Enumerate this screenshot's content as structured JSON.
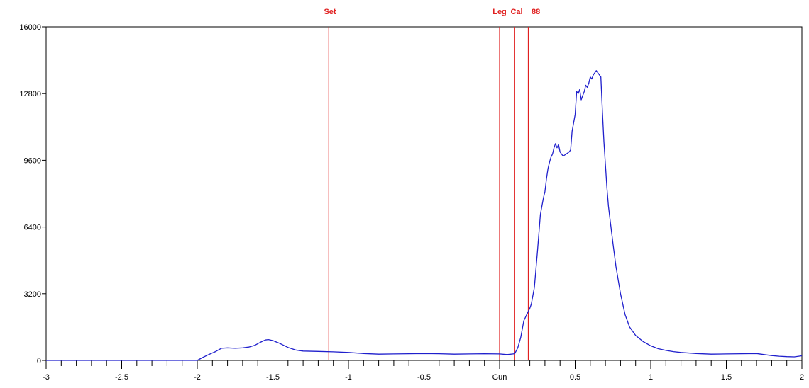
{
  "chart_data": {
    "type": "line",
    "title": "",
    "xlabel": "",
    "ylabel": "",
    "xlim": [
      -3,
      2
    ],
    "ylim": [
      0,
      16000
    ],
    "grid": false,
    "x_ticks": [
      {
        "value": -3,
        "label": "-3"
      },
      {
        "value": -2.5,
        "label": "-2.5"
      },
      {
        "value": -2,
        "label": "-2"
      },
      {
        "value": -1.5,
        "label": "-1.5"
      },
      {
        "value": -1,
        "label": "-1"
      },
      {
        "value": -0.5,
        "label": "-0.5"
      },
      {
        "value": 0,
        "label": "Gun"
      },
      {
        "value": 0.5,
        "label": "0.5"
      },
      {
        "value": 1,
        "label": "1"
      },
      {
        "value": 1.5,
        "label": "1.5"
      },
      {
        "value": 2,
        "label": "2"
      }
    ],
    "x_minor_step": 0.1,
    "y_ticks": [
      {
        "value": 0,
        "label": "0"
      },
      {
        "value": 3200,
        "label": "3200"
      },
      {
        "value": 6400,
        "label": "6400"
      },
      {
        "value": 9600,
        "label": "9600"
      },
      {
        "value": 12800,
        "label": "12800"
      },
      {
        "value": 16000,
        "label": "16000"
      }
    ],
    "markers": [
      {
        "x": -1.13,
        "label": "Set"
      },
      {
        "x": 0.0,
        "label": "Leg"
      },
      {
        "x": 0.1,
        "label": "Cal"
      },
      {
        "x": 0.19,
        "label": "88"
      }
    ],
    "series": [
      {
        "color": "#1f1fcc",
        "x": [
          -3.0,
          -2.0,
          -1.97,
          -1.93,
          -1.88,
          -1.84,
          -1.8,
          -1.75,
          -1.7,
          -1.66,
          -1.62,
          -1.58,
          -1.55,
          -1.53,
          -1.5,
          -1.45,
          -1.4,
          -1.35,
          -1.3,
          -1.2,
          -1.1,
          -1.0,
          -0.9,
          -0.8,
          -0.7,
          -0.6,
          -0.5,
          -0.4,
          -0.3,
          -0.2,
          -0.1,
          0.0,
          0.05,
          0.1,
          0.12,
          0.14,
          0.16,
          0.18,
          0.2,
          0.21,
          0.23,
          0.25,
          0.27,
          0.29,
          0.3,
          0.31,
          0.32,
          0.33,
          0.34,
          0.35,
          0.36,
          0.37,
          0.38,
          0.39,
          0.4,
          0.42,
          0.44,
          0.46,
          0.47,
          0.48,
          0.5,
          0.51,
          0.52,
          0.53,
          0.54,
          0.55,
          0.56,
          0.57,
          0.58,
          0.59,
          0.6,
          0.61,
          0.62,
          0.63,
          0.64,
          0.65,
          0.66,
          0.67,
          0.68,
          0.69,
          0.7,
          0.71,
          0.72,
          0.73,
          0.75,
          0.77,
          0.8,
          0.83,
          0.86,
          0.9,
          0.95,
          1.0,
          1.05,
          1.1,
          1.15,
          1.2,
          1.3,
          1.4,
          1.5,
          1.6,
          1.7,
          1.75,
          1.8,
          1.85,
          1.9,
          1.95,
          2.0
        ],
        "y": [
          0,
          0,
          120,
          260,
          420,
          580,
          600,
          580,
          600,
          640,
          720,
          880,
          980,
          1000,
          950,
          800,
          620,
          500,
          450,
          430,
          410,
          380,
          330,
          300,
          310,
          320,
          330,
          320,
          300,
          310,
          320,
          310,
          280,
          320,
          600,
          1100,
          1900,
          2200,
          2500,
          2700,
          3500,
          5200,
          7000,
          7800,
          8100,
          8700,
          9200,
          9500,
          9750,
          9900,
          10200,
          10400,
          10200,
          10350,
          10000,
          9800,
          9900,
          10000,
          10100,
          11000,
          11800,
          12900,
          12800,
          13000,
          12500,
          12700,
          12900,
          13200,
          13100,
          13300,
          13600,
          13500,
          13700,
          13800,
          13900,
          13800,
          13700,
          13600,
          12000,
          10500,
          9400,
          8300,
          7400,
          6800,
          5600,
          4500,
          3200,
          2200,
          1600,
          1200,
          900,
          700,
          560,
          480,
          420,
          380,
          330,
          300,
          310,
          320,
          330,
          280,
          230,
          200,
          180,
          170,
          220
        ]
      }
    ]
  }
}
